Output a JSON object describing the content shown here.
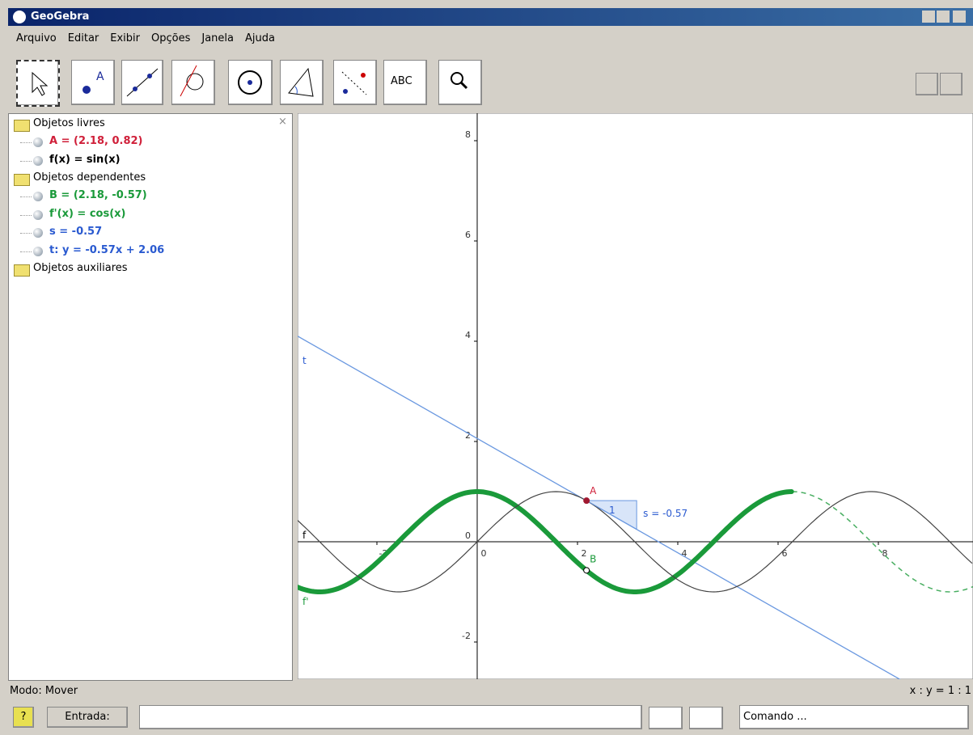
{
  "window": {
    "title": "GeoGebra"
  },
  "menu": [
    "Arquivo",
    "Editar",
    "Exibir",
    "Opções",
    "Janela",
    "Ajuda"
  ],
  "toolbar": {
    "text_tool": "ABC"
  },
  "algebra": {
    "groups": [
      {
        "name": "Objetos livres",
        "items": [
          {
            "text": "A = (2.18, 0.82)",
            "color": "#d0203a"
          },
          {
            "text": "f(x) = sin(x)",
            "color": "#000000"
          }
        ]
      },
      {
        "name": "Objetos dependentes",
        "items": [
          {
            "text": "B = (2.18, -0.57)",
            "color": "#1a9a3a"
          },
          {
            "text": "f'(x) = cos(x)",
            "color": "#1a9a3a"
          },
          {
            "text": "s = -0.57",
            "color": "#2a5ad0"
          },
          {
            "text": "t: y = -0.57x + 2.06",
            "color": "#2a5ad0"
          }
        ]
      },
      {
        "name": "Objetos auxiliares",
        "items": []
      }
    ]
  },
  "graphics": {
    "xticks": [
      -2,
      0,
      2,
      4,
      6,
      8
    ],
    "yticks": [
      -2,
      0,
      2,
      4,
      6,
      8
    ],
    "labels": {
      "A": "A",
      "B": "B",
      "t": "t",
      "f": "f",
      "fp": "f'",
      "slope_run": "1",
      "slope": "s = -0.57"
    }
  },
  "status": {
    "mode": "Modo: Mover",
    "ratio": "x : y = 1 : 1"
  },
  "input": {
    "help": "?",
    "label": "Entrada:",
    "command": "Comando ..."
  }
}
